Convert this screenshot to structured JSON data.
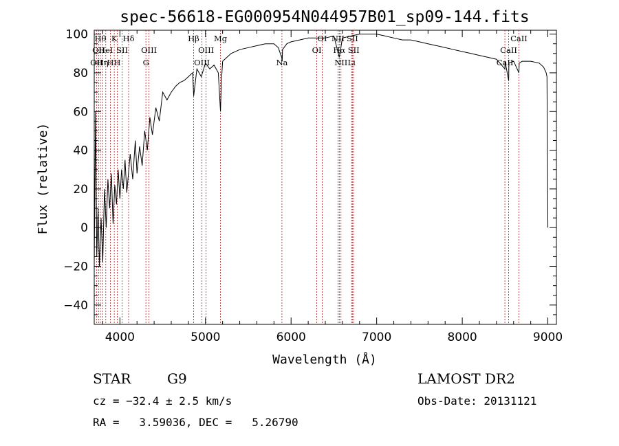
{
  "chart_data": {
    "type": "line",
    "title": "spec-56618-EG000954N044957B01_sp09-144.fits",
    "xlabel": "Wavelength (Å)",
    "ylabel": "Flux (relative)",
    "xlim": [
      3700,
      9100
    ],
    "ylim": [
      -50,
      102
    ],
    "xticks": [
      4000,
      5000,
      6000,
      7000,
      8000,
      9000
    ],
    "yticks": [
      -40,
      -20,
      0,
      20,
      40,
      60,
      80,
      100
    ],
    "series": [
      {
        "x": [
          3700,
          3715,
          3730,
          3745,
          3760,
          3780,
          3800,
          3820,
          3840,
          3860,
          3880,
          3900,
          3920,
          3940,
          3960,
          3980,
          4000,
          4020,
          4040,
          4060,
          4080,
          4100,
          4120,
          4150,
          4180,
          4200,
          4230,
          4260,
          4290,
          4320,
          4350,
          4380,
          4420,
          4460,
          4500,
          4550,
          4600,
          4650,
          4700,
          4750,
          4800,
          4850,
          4862,
          4900,
          4950,
          5000,
          5050,
          5100,
          5150,
          5175,
          5185,
          5200,
          5250,
          5300,
          5400,
          5500,
          5600,
          5700,
          5800,
          5850,
          5890,
          5896,
          5900,
          5950,
          6000,
          6100,
          6200,
          6300,
          6400,
          6500,
          6563,
          6600,
          6700,
          6800,
          6900,
          7000,
          7100,
          7200,
          7300,
          7400,
          7500,
          7600,
          7700,
          7800,
          7900,
          8000,
          8100,
          8200,
          8300,
          8400,
          8498,
          8500,
          8542,
          8545,
          8600,
          8662,
          8665,
          8700,
          8800,
          8900,
          8950,
          8980,
          8990,
          9000
        ],
        "y": [
          -20,
          60,
          -15,
          10,
          -20,
          5,
          -18,
          20,
          0,
          25,
          10,
          28,
          2,
          22,
          12,
          30,
          15,
          30,
          20,
          35,
          18,
          28,
          38,
          25,
          45,
          28,
          42,
          32,
          50,
          40,
          57,
          48,
          62,
          55,
          70,
          66,
          70,
          73,
          75,
          76,
          78,
          80,
          68,
          82,
          78,
          85,
          82,
          84,
          80,
          60,
          75,
          86,
          88,
          90,
          92,
          93,
          94,
          95,
          95,
          93,
          88,
          86,
          92,
          95,
          96,
          97,
          98,
          98,
          98,
          99,
          88,
          98,
          99,
          100,
          100,
          100,
          99,
          98,
          97,
          97,
          96,
          95,
          94,
          93,
          92,
          91,
          90,
          89,
          88,
          87,
          82,
          86,
          76,
          85,
          86,
          80,
          85,
          86,
          86,
          85,
          83,
          80,
          78,
          0
        ]
      }
    ],
    "lines": [
      {
        "wl": 3727,
        "text": "OII",
        "row": 3
      },
      {
        "wl": 3751,
        "text": "OII",
        "row": 2
      },
      {
        "wl": 3772,
        "text": "Hθ",
        "row": 1
      },
      {
        "wl": 3798,
        "text": "Hη",
        "row": 3
      },
      {
        "wl": 3835,
        "text": "HeI",
        "row": 2
      },
      {
        "wl": 3889,
        "text": "H",
        "row": 3
      },
      {
        "wl": 3934,
        "text": "K",
        "row": 1
      },
      {
        "wl": 3969,
        "text": "H",
        "row": 3
      },
      {
        "wl": 4026,
        "text": "SII",
        "row": 2
      },
      {
        "wl": 4102,
        "text": "Hδ",
        "row": 1
      },
      {
        "wl": 4304,
        "text": "G",
        "row": 3
      },
      {
        "wl": 4340,
        "text": "OIII",
        "row": 2
      },
      {
        "wl": 4861,
        "text": "Hβ",
        "row": 1
      },
      {
        "wl": 4959,
        "text": "OIII",
        "row": 3
      },
      {
        "wl": 5007,
        "text": "OIII",
        "row": 2
      },
      {
        "wl": 5175,
        "text": "Mg",
        "row": 1
      },
      {
        "wl": 5893,
        "text": "Na",
        "row": 3
      },
      {
        "wl": 6300,
        "text": "OI",
        "row": 2
      },
      {
        "wl": 6364,
        "text": "OI",
        "row": 1
      },
      {
        "wl": 6548,
        "text": "NII",
        "row": 1
      },
      {
        "wl": 6563,
        "text": "Hα",
        "row": 2
      },
      {
        "wl": 6583,
        "text": "NII",
        "row": 3
      },
      {
        "wl": 6707,
        "text": "Li",
        "row": 3
      },
      {
        "wl": 6716,
        "text": "SII",
        "row": 1
      },
      {
        "wl": 6731,
        "text": "SII",
        "row": 2
      },
      {
        "wl": 8498,
        "text": "CaII",
        "row": 3
      },
      {
        "wl": 8542,
        "text": "CaII",
        "row": 2
      },
      {
        "wl": 8662,
        "text": "CaII",
        "row": 1
      }
    ]
  },
  "info": {
    "star_type": "STAR",
    "subclass": "G9",
    "cz": "cz = −32.4 ± 2.5 km/s",
    "coords": "RA =   3.59036, DEC =   5.26790",
    "survey": "LAMOST DR2",
    "obs_date": "Obs-Date: 20131121"
  }
}
